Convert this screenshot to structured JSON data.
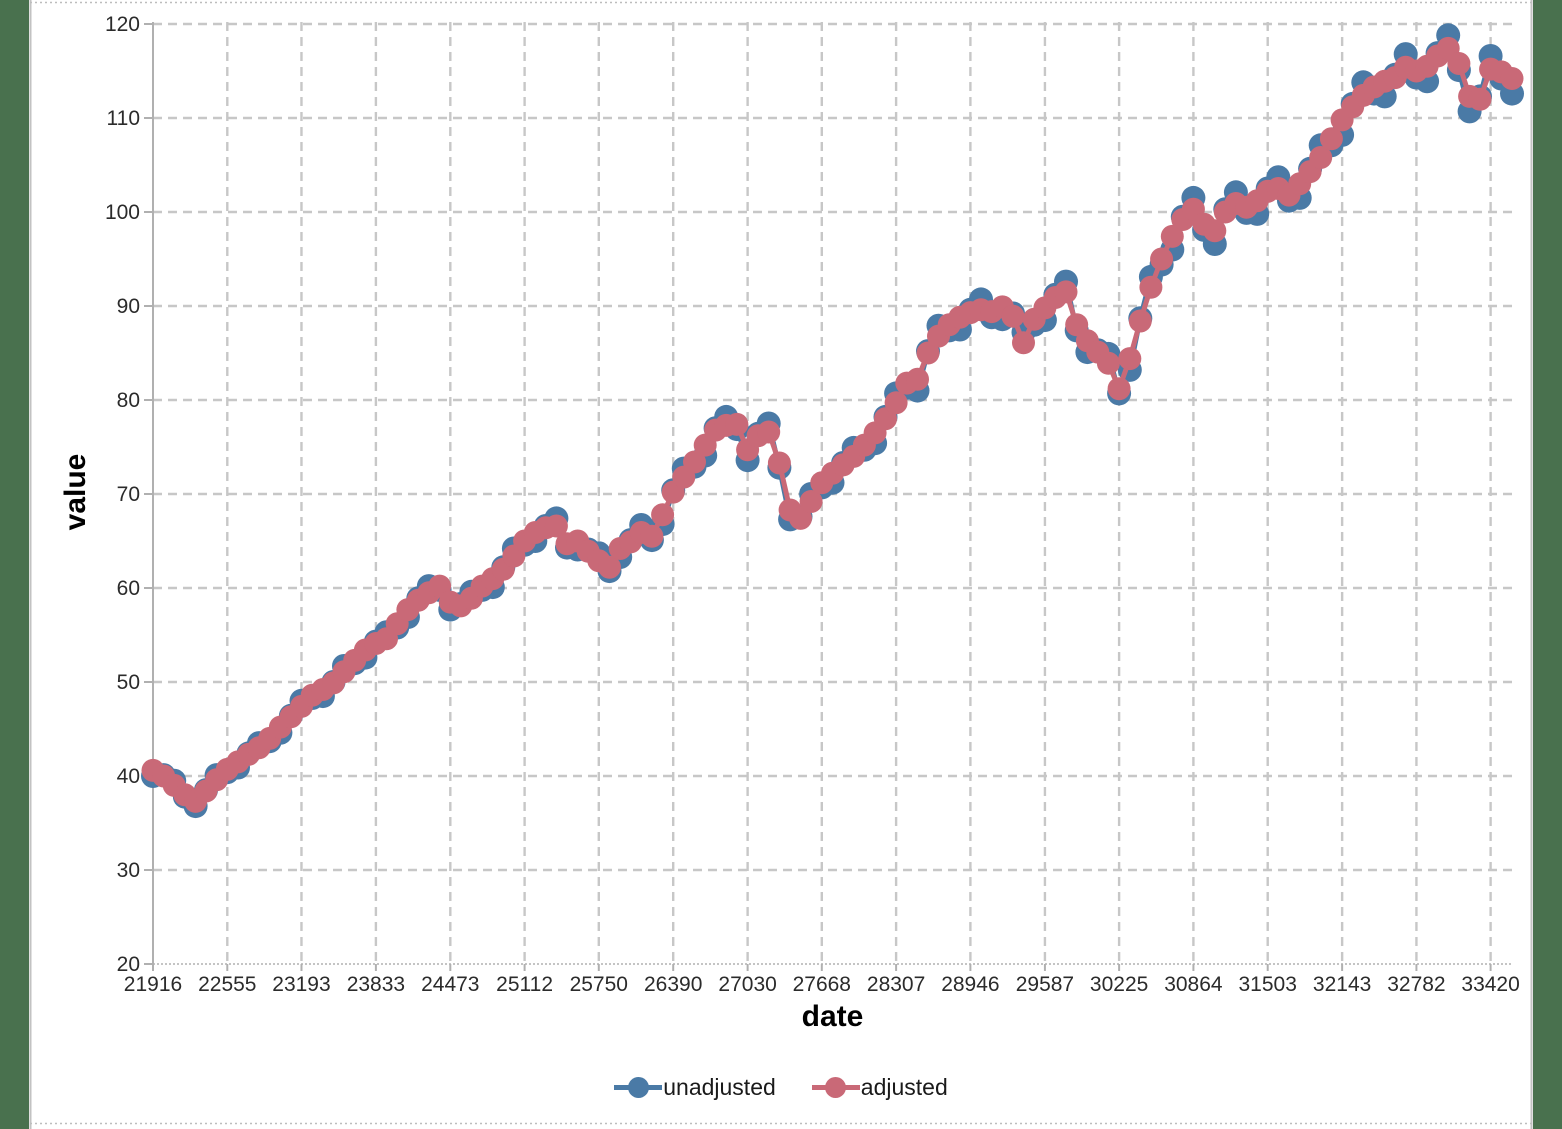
{
  "page": {
    "background_color": "#49714e",
    "canvas_color": "#ffffff",
    "canvas_border_color": "#c2c2c2"
  },
  "axes": {
    "x_title": "date",
    "y_title": "value",
    "x_ticks": [
      21916,
      22555,
      23193,
      23833,
      24473,
      25112,
      25750,
      26390,
      27030,
      27668,
      28307,
      28946,
      29587,
      30225,
      30864,
      31503,
      32143,
      32782,
      33420
    ],
    "y_ticks": [
      20,
      30,
      40,
      50,
      60,
      70,
      80,
      90,
      100,
      110,
      120
    ],
    "gridline_color": "#c7c7c7",
    "axis_line_color": "#b0b0b0",
    "tick_label_color": "#2b2b2b"
  },
  "legend": [
    {
      "label": "unadjusted",
      "color": "#4a7aa6"
    },
    {
      "label": "adjusted",
      "color": "#c96977"
    }
  ],
  "chart_data": {
    "type": "line",
    "title": "",
    "xlabel": "date",
    "ylabel": "value",
    "xlim": [
      21916,
      33604
    ],
    "ylim": [
      20,
      120
    ],
    "grid": true,
    "legend_position": "bottom",
    "x": [
      21916,
      22007,
      22098,
      22190,
      22282,
      22372,
      22463,
      22555,
      22647,
      22737,
      22828,
      22920,
      23012,
      23102,
      23193,
      23285,
      23377,
      23468,
      23559,
      23651,
      23743,
      23833,
      23924,
      24016,
      24108,
      24198,
      24289,
      24381,
      24473,
      24563,
      24654,
      24746,
      24838,
      24929,
      25020,
      25112,
      25204,
      25294,
      25385,
      25477,
      25569,
      25659,
      25750,
      25842,
      25934,
      26024,
      26115,
      26207,
      26299,
      26390,
      26481,
      26573,
      26665,
      26755,
      26846,
      26938,
      27030,
      27120,
      27211,
      27303,
      27395,
      27485,
      27576,
      27668,
      27760,
      27851,
      27942,
      28034,
      28126,
      28216,
      28307,
      28399,
      28491,
      28581,
      28672,
      28764,
      28856,
      28946,
      29037,
      29129,
      29221,
      29312,
      29403,
      29495,
      29587,
      29677,
      29768,
      29860,
      29952,
      30042,
      30133,
      30225,
      30317,
      30407,
      30498,
      30590,
      30682,
      30773,
      30864,
      30956,
      31048,
      31138,
      31229,
      31321,
      31413,
      31503,
      31594,
      31686,
      31778,
      31868,
      31959,
      32051,
      32143,
      32234,
      32325,
      32417,
      32509,
      32599,
      32690,
      32782,
      32874,
      32964,
      33055,
      33147,
      33239,
      33329,
      33420,
      33512,
      33604
    ],
    "series": [
      {
        "name": "unadjusted",
        "color": "#4a7aa6",
        "marker_radius": 12,
        "values": [
          40.0,
          40.1,
          39.5,
          37.8,
          36.8,
          38.5,
          40.1,
          40.4,
          40.9,
          42.4,
          43.5,
          43.7,
          44.6,
          46.4,
          48.0,
          48.3,
          48.5,
          50.0,
          51.7,
          52.0,
          52.6,
          54.3,
          55.3,
          55.8,
          56.9,
          58.9,
          60.2,
          59.8,
          57.7,
          58.3,
          59.6,
          59.8,
          60.1,
          62.2,
          64.2,
          64.6,
          65.0,
          66.6,
          67.4,
          64.3,
          64.1,
          64.1,
          63.7,
          61.8,
          63.3,
          65.1,
          66.7,
          65.1,
          66.8,
          70.4,
          72.7,
          72.9,
          74.1,
          77.0,
          78.2,
          76.9,
          73.6,
          76.4,
          77.5,
          72.8,
          67.3,
          67.6,
          70.0,
          70.7,
          71.2,
          73.3,
          74.9,
          74.7,
          75.4,
          78.2,
          80.7,
          81.3,
          81.0,
          85.2,
          87.9,
          87.4,
          87.5,
          89.6,
          90.7,
          88.8,
          88.6,
          89.2,
          87.2,
          88.0,
          88.5,
          91.2,
          92.6,
          87.4,
          85.1,
          85.3,
          84.9,
          80.7,
          83.2,
          88.7,
          93.1,
          94.4,
          96.0,
          99.5,
          101.5,
          98.1,
          96.6,
          100.3,
          102.1,
          99.9,
          99.8,
          102.5,
          103.7,
          101.2,
          101.5,
          104.6,
          107.1,
          107.1,
          108.2,
          111.5,
          113.8,
          112.6,
          112.3,
          114.6,
          116.8,
          114.3,
          113.9,
          116.9,
          118.8,
          115.1,
          110.7,
          112.3,
          116.6,
          114.2,
          112.6
        ]
      },
      {
        "name": "adjusted",
        "color": "#c96977",
        "marker_radius": 11.5,
        "values": [
          40.6,
          40.0,
          39.0,
          38.0,
          37.3,
          38.4,
          39.6,
          40.7,
          41.5,
          42.3,
          43.0,
          44.0,
          45.2,
          46.3,
          47.4,
          48.6,
          49.2,
          49.9,
          51.1,
          52.3,
          53.4,
          54.1,
          54.6,
          56.2,
          57.7,
          58.7,
          59.5,
          60.2,
          58.5,
          58.1,
          58.9,
          60.2,
          61.0,
          62.0,
          63.4,
          65.0,
          65.9,
          66.4,
          66.6,
          64.7,
          65.0,
          63.9,
          62.9,
          62.2,
          64.2,
          64.9,
          65.9,
          65.5,
          67.8,
          70.2,
          71.8,
          73.4,
          75.2,
          76.8,
          77.3,
          77.4,
          74.7,
          76.2,
          76.6,
          73.3,
          68.3,
          67.4,
          69.2,
          71.2,
          72.2,
          73.1,
          74.0,
          75.2,
          76.5,
          78.0,
          79.7,
          81.8,
          82.2,
          85.0,
          86.8,
          88.0,
          88.8,
          89.3,
          89.6,
          89.4,
          89.9,
          88.9,
          86.1,
          88.6,
          89.8,
          90.9,
          91.5,
          88.0,
          86.3,
          85.1,
          83.9,
          81.2,
          84.4,
          88.4,
          92.0,
          95.0,
          97.4,
          99.2,
          100.3,
          98.7,
          98.0,
          100.0,
          100.9,
          100.5,
          101.2,
          102.2,
          102.5,
          101.8,
          103.0,
          104.3,
          105.8,
          107.8,
          109.8,
          111.2,
          112.4,
          113.3,
          113.9,
          114.3,
          115.4,
          115.0,
          115.5,
          116.6,
          117.4,
          115.8,
          112.3,
          112.0,
          115.2,
          114.9,
          114.2
        ]
      }
    ]
  }
}
